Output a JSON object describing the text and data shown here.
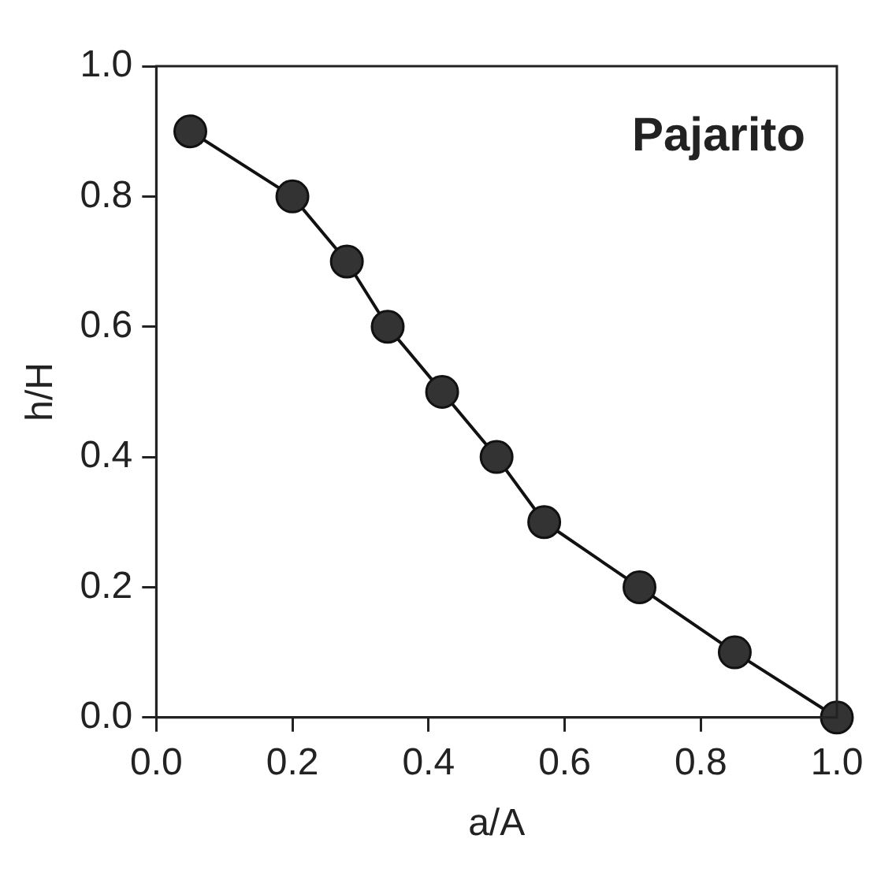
{
  "chart_data": {
    "type": "line",
    "xlabel": "a/A",
    "ylabel": "h/H",
    "annotations": [
      "Pajarito"
    ],
    "x": [
      0.05,
      0.2,
      0.28,
      0.34,
      0.42,
      0.5,
      0.57,
      0.71,
      0.85,
      1.0
    ],
    "series": [
      {
        "color": "#333333",
        "values": [
          0.9,
          0.8,
          0.7,
          0.6,
          0.5,
          0.4,
          0.3,
          0.2,
          0.1,
          0.0
        ]
      }
    ],
    "xlim": [
      0,
      1
    ],
    "xticks": [
      {
        "value": 0,
        "label": "0.0"
      },
      0.2,
      0.4,
      0.6,
      0.8,
      {
        "value": 1,
        "label": "1.0"
      }
    ],
    "ylim": [
      0,
      1
    ],
    "yticks": [
      {
        "value": 0,
        "label": "0.0"
      },
      0.2,
      0.4,
      0.6,
      0.8,
      {
        "value": 1,
        "label": "1.0"
      }
    ],
    "marker": "circle",
    "line_style": "solid",
    "legend": false
  }
}
